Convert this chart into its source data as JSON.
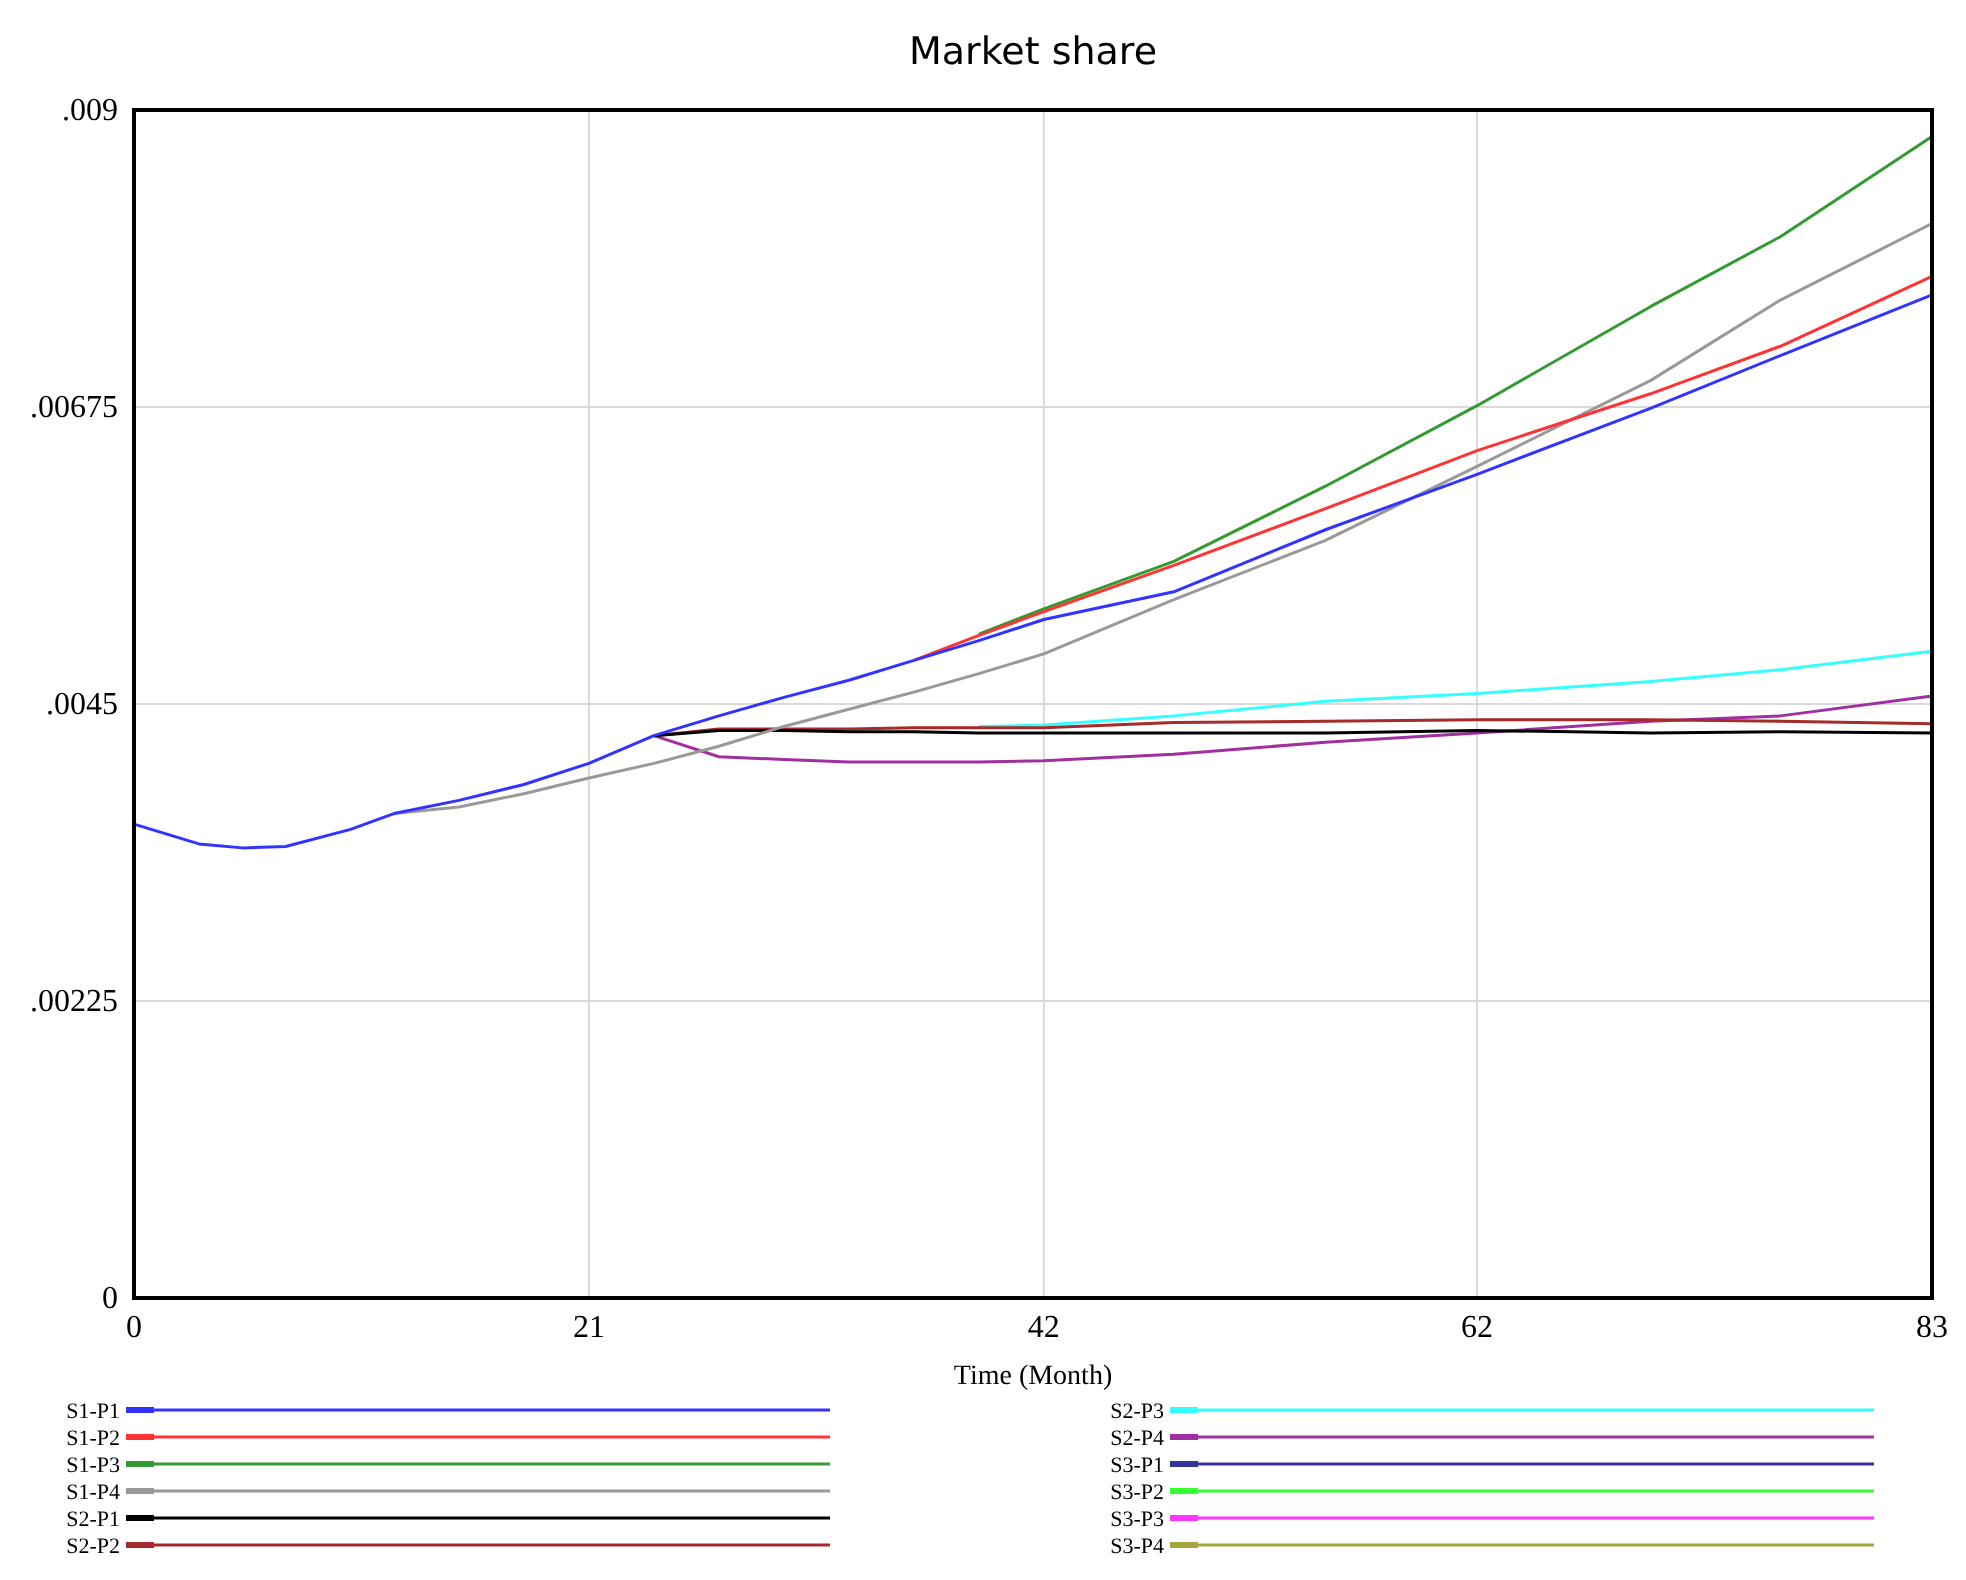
{
  "chart_data": {
    "type": "line",
    "title": "Market share",
    "xlabel": "Time (Month)",
    "x": [
      0,
      3,
      5,
      7,
      10,
      12,
      15,
      18,
      21,
      24,
      27,
      30,
      33,
      36,
      39,
      42,
      48,
      55,
      62,
      70,
      76,
      83
    ],
    "xlim": [
      0,
      83
    ],
    "xticks": [
      0,
      21,
      42,
      62,
      83
    ],
    "ylim": [
      0,
      0.009
    ],
    "yticks": [
      {
        "value": 0,
        "label": "0"
      },
      {
        "value": 0.00225,
        "label": ".00225"
      },
      {
        "value": 0.0045,
        "label": ".0045"
      },
      {
        "value": 0.00675,
        "label": ".00675"
      },
      {
        "value": 0.009,
        "label": ".009"
      }
    ],
    "grid": true,
    "legend": "bottom",
    "line_style": "solid",
    "series": [
      {
        "name": "S1-P1",
        "color": "#3333ff",
        "values": [
          0.00359,
          0.00344,
          0.00341,
          0.00342,
          0.00355,
          0.00367,
          0.00377,
          0.00389,
          0.00405,
          0.00426,
          0.00441,
          0.00455,
          0.00468,
          0.00483,
          0.00498,
          0.00514,
          0.00535,
          0.00582,
          0.00624,
          0.00674,
          0.00714,
          0.0076
        ]
      },
      {
        "name": "S1-P2",
        "color": "#ff3333",
        "values": [
          null,
          null,
          null,
          null,
          null,
          null,
          null,
          null,
          null,
          null,
          null,
          null,
          null,
          0.00483,
          0.00502,
          0.0052,
          0.00555,
          0.00598,
          0.00642,
          0.00685,
          0.00721,
          0.00774
        ]
      },
      {
        "name": "S1-P3",
        "color": "#339933",
        "values": [
          null,
          null,
          null,
          null,
          null,
          null,
          null,
          null,
          null,
          null,
          null,
          null,
          null,
          null,
          0.00503,
          0.00522,
          0.00558,
          0.00615,
          0.00676,
          0.00751,
          0.00804,
          0.0088
        ]
      },
      {
        "name": "S1-P4",
        "color": "#999999",
        "values": [
          null,
          null,
          null,
          null,
          null,
          0.00367,
          0.00372,
          0.00382,
          0.00394,
          0.00405,
          0.00418,
          0.00433,
          0.00446,
          0.00459,
          0.00473,
          0.00488,
          0.00529,
          0.00574,
          0.0063,
          0.00695,
          0.00756,
          0.00814
        ]
      },
      {
        "name": "S2-P1",
        "color": "#000000",
        "values": [
          null,
          null,
          null,
          null,
          null,
          null,
          null,
          null,
          null,
          0.00426,
          0.0043,
          0.0043,
          0.00429,
          0.00429,
          0.00428,
          0.00428,
          0.00428,
          0.00428,
          0.0043,
          0.00428,
          0.00429,
          0.00428
        ]
      },
      {
        "name": "S2-P2",
        "color": "#a52a2a",
        "values": [
          null,
          null,
          null,
          null,
          null,
          null,
          null,
          null,
          null,
          0.00426,
          0.00431,
          0.00431,
          0.00431,
          0.00432,
          0.00432,
          0.00432,
          0.00436,
          0.00437,
          0.00438,
          0.00438,
          0.00437,
          0.00435
        ]
      },
      {
        "name": "S2-P3",
        "color": "#33ffff",
        "values": [
          null,
          null,
          null,
          null,
          null,
          null,
          null,
          null,
          null,
          null,
          null,
          null,
          null,
          null,
          0.00433,
          0.00434,
          0.00441,
          0.00452,
          0.00458,
          0.00467,
          0.00476,
          0.0049
        ]
      },
      {
        "name": "S2-P4",
        "color": "#a030a0",
        "values": [
          null,
          null,
          null,
          null,
          null,
          null,
          null,
          null,
          null,
          0.00426,
          0.0041,
          0.00408,
          0.00406,
          0.00406,
          0.00406,
          0.00407,
          0.00412,
          0.00421,
          0.00428,
          0.00437,
          0.00441,
          0.00456
        ]
      },
      {
        "name": "S3-P1",
        "color": "#333399",
        "values": [
          null,
          null,
          null,
          null,
          null,
          null,
          null,
          null,
          null,
          null,
          null,
          null,
          null,
          null,
          null,
          null,
          null,
          null,
          null,
          null,
          null,
          null
        ]
      },
      {
        "name": "S3-P2",
        "color": "#33ff33",
        "values": [
          null,
          null,
          null,
          null,
          null,
          null,
          null,
          null,
          null,
          null,
          null,
          null,
          null,
          null,
          null,
          null,
          null,
          null,
          null,
          null,
          null,
          null
        ]
      },
      {
        "name": "S3-P3",
        "color": "#ff33ff",
        "values": [
          null,
          null,
          null,
          null,
          null,
          null,
          null,
          null,
          null,
          null,
          null,
          null,
          null,
          null,
          null,
          null,
          null,
          null,
          null,
          null,
          null,
          null
        ]
      },
      {
        "name": "S3-P4",
        "color": "#a6a640",
        "values": [
          null,
          null,
          null,
          null,
          null,
          null,
          null,
          null,
          null,
          null,
          null,
          null,
          null,
          null,
          null,
          null,
          null,
          null,
          null,
          null,
          null,
          null
        ]
      }
    ]
  }
}
